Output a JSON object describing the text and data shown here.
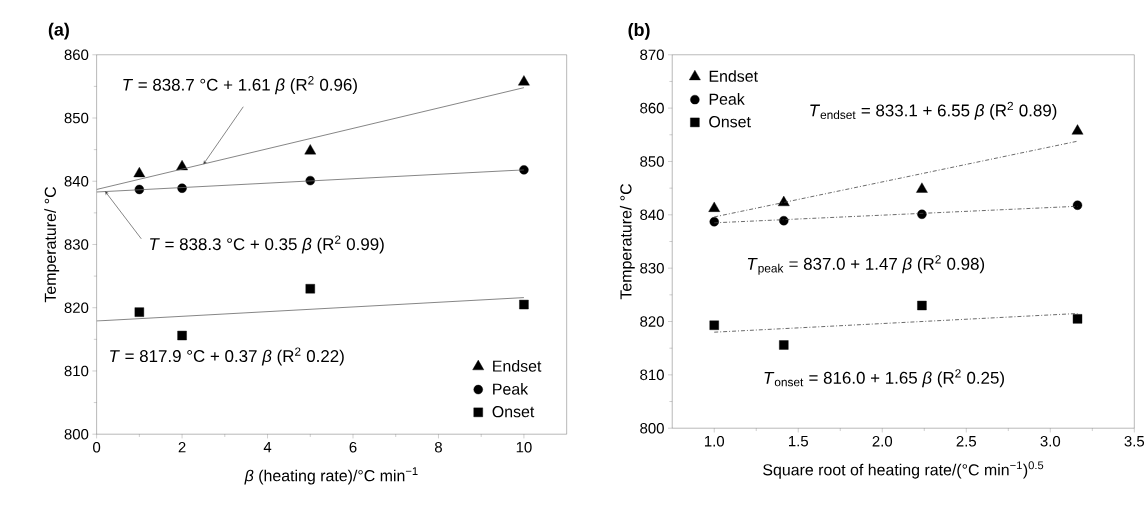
{
  "chart_data": [
    {
      "type": "scatter",
      "title": "(a)",
      "xlabel": "*β* (heating rate)/°C min$^{−1}$",
      "ylabel": "Temperature/ °C",
      "xlim": [
        0,
        11
      ],
      "ylim": [
        800,
        860
      ],
      "xticks": [
        0,
        2,
        4,
        6,
        8,
        10
      ],
      "yticks": [
        800,
        810,
        820,
        830,
        840,
        850,
        860
      ],
      "legend": "bottom right",
      "series": [
        {
          "name": "Endset",
          "marker": "triangle",
          "color": "#000000",
          "x": [
            1,
            2,
            5,
            10
          ],
          "values": [
            841.2,
            842.3,
            844.8,
            855.7
          ]
        },
        {
          "name": "Peak",
          "marker": "circle",
          "color": "#000000",
          "x": [
            1,
            2,
            5,
            10
          ],
          "values": [
            838.7,
            838.9,
            840.1,
            841.8
          ]
        },
        {
          "name": "Onset",
          "marker": "square",
          "color": "#000000",
          "x": [
            1,
            2,
            5,
            10
          ],
          "values": [
            819.3,
            815.6,
            823.0,
            820.5
          ]
        },
        {
          "type": "line",
          "line_style": "solid",
          "color": "#666666",
          "x": [
            0,
            10
          ],
          "values": [
            838.7,
            854.8
          ]
        },
        {
          "type": "line",
          "line_style": "solid",
          "color": "#666666",
          "x": [
            0,
            10
          ],
          "values": [
            838.3,
            841.8
          ]
        },
        {
          "type": "line",
          "line_style": "solid",
          "color": "#666666",
          "x": [
            0,
            10
          ],
          "values": [
            817.9,
            821.6
          ]
        }
      ],
      "annotations": [
        {
          "text": "*T* = 838.7 °C + 1.61 *β* (R$^{2}$ 0.96)",
          "x": 2.5,
          "y": 842.7
        },
        {
          "text": "*T* = 838.3 °C + 0.35 *β* (R$^{2}$ 0.99)",
          "x": 0.2,
          "y": 838.4
        },
        "*T* = 817.9 °C + 0.37 *β* (R$^{2}$ 0.22)"
      ]
    },
    {
      "type": "scatter",
      "title": "(b)",
      "xlabel": "Square root of heating rate/(°C min$^{−1}$)$^{0.5}$",
      "ylabel": "Temperature/ °C",
      "xlim": [
        0.75,
        3.5
      ],
      "ylim": [
        800,
        870
      ],
      "xticks": [
        {
          "value": 1,
          "label": "1.0"
        },
        {
          "value": 1.5,
          "label": "1.5"
        },
        {
          "value": 2,
          "label": "2.0"
        },
        {
          "value": 2.5,
          "label": "2.5"
        },
        {
          "value": 3,
          "label": "3.0"
        },
        {
          "value": 3.5,
          "label": "3.5"
        }
      ],
      "yticks": [
        800,
        810,
        820,
        830,
        840,
        850,
        860,
        870
      ],
      "legend": "top left",
      "series": [
        {
          "name": "Endset",
          "marker": "triangle",
          "color": "#000000",
          "x": [
            1,
            1.414,
            2.236,
            3.162
          ],
          "values": [
            841.2,
            842.3,
            844.8,
            855.7
          ]
        },
        {
          "name": "Peak",
          "marker": "circle",
          "color": "#000000",
          "x": [
            1,
            1.414,
            2.236,
            3.162
          ],
          "values": [
            838.7,
            838.9,
            840.1,
            841.8
          ]
        },
        {
          "name": "Onset",
          "marker": "square",
          "color": "#000000",
          "x": [
            1,
            1.414,
            2.236,
            3.162
          ],
          "values": [
            819.3,
            815.6,
            823.0,
            820.5
          ]
        },
        {
          "type": "line",
          "line_style": "dashed",
          "color": "#444444",
          "x": [
            1,
            3.162
          ],
          "values": [
            839.6,
            853.8
          ]
        },
        {
          "type": "line",
          "line_style": "dashed",
          "color": "#444444",
          "x": [
            1,
            3.162
          ],
          "values": [
            838.5,
            841.6
          ]
        },
        {
          "type": "line",
          "line_style": "dashed",
          "color": "#444444",
          "x": [
            1,
            3.162
          ],
          "values": [
            818.0,
            821.5
          ]
        }
      ],
      "annotations": [
        "*T*$_{endset}$ = 833.1 + 6.55 *β*  (R$^{2}$ 0.89)",
        "*T*$_{peak}$ = 837.0 + 1.47 *β*  (R$^{2}$ 0.98)",
        "*T*$_{onset}$ = 816.0 + 1.65 *β*  (R$^{2}$ 0.25)"
      ]
    }
  ]
}
